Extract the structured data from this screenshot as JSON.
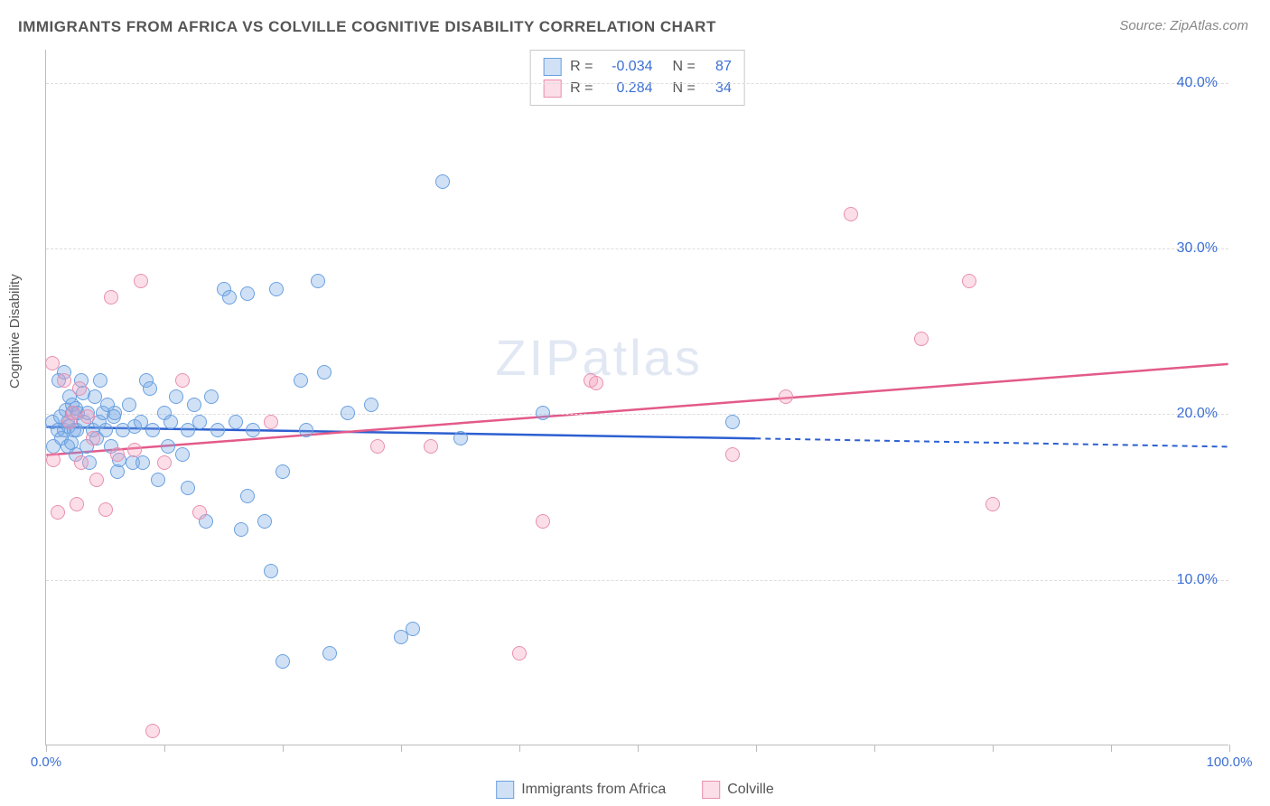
{
  "title": "IMMIGRANTS FROM AFRICA VS COLVILLE COGNITIVE DISABILITY CORRELATION CHART",
  "source_prefix": "Source: ",
  "source_name": "ZipAtlas.com",
  "watermark": "ZIPatlas",
  "ylabel": "Cognitive Disability",
  "chart": {
    "type": "scatter",
    "xlim": [
      0,
      100
    ],
    "ylim": [
      0,
      42
    ],
    "xticks": [
      0,
      10,
      20,
      30,
      40,
      50,
      60,
      70,
      80,
      90,
      100
    ],
    "xtick_labels": {
      "0": "0.0%",
      "100": "100.0%"
    },
    "yticks": [
      10,
      20,
      30,
      40
    ],
    "ytick_labels": [
      "10.0%",
      "20.0%",
      "30.0%",
      "40.0%"
    ],
    "grid_color": "#dddddd",
    "axis_color": "#bbbbbb",
    "tick_label_color": "#3b6fd4",
    "background_color": "#ffffff",
    "marker_radius": 8,
    "marker_stroke_width": 1.5,
    "trend_line_width": 2.5
  },
  "series": [
    {
      "name": "Immigrants from Africa",
      "fill": "rgba(120,170,230,0.35)",
      "stroke": "#6aa0e0",
      "trend_color": "#2d5fd0",
      "r_label": "R =",
      "r_value": "-0.034",
      "n_label": "N =",
      "n_value": "87",
      "trend": {
        "x1": 0,
        "y1": 19.2,
        "x2": 60,
        "y2": 18.5,
        "dash_to_x": 100,
        "dash_to_y": 18.0
      },
      "points": [
        [
          0.5,
          19.5
        ],
        [
          0.6,
          18.0
        ],
        [
          1.0,
          19.0
        ],
        [
          1.1,
          22.0
        ],
        [
          1.2,
          19.8
        ],
        [
          1.3,
          18.5
        ],
        [
          1.5,
          19.0
        ],
        [
          1.5,
          22.5
        ],
        [
          1.7,
          20.2
        ],
        [
          1.8,
          18.0
        ],
        [
          1.8,
          19.5
        ],
        [
          1.9,
          19.2
        ],
        [
          2.0,
          21.0
        ],
        [
          2.1,
          18.2
        ],
        [
          2.2,
          20.5
        ],
        [
          2.2,
          20.0
        ],
        [
          2.4,
          19.0
        ],
        [
          2.5,
          17.5
        ],
        [
          2.5,
          20.3
        ],
        [
          2.6,
          19.0
        ],
        [
          2.7,
          20.0
        ],
        [
          3.0,
          22.0
        ],
        [
          3.1,
          21.2
        ],
        [
          3.2,
          19.5
        ],
        [
          3.4,
          18.0
        ],
        [
          3.5,
          20.0
        ],
        [
          3.7,
          17.0
        ],
        [
          4.0,
          19.0
        ],
        [
          4.1,
          21.0
        ],
        [
          4.3,
          18.5
        ],
        [
          4.5,
          19.5
        ],
        [
          4.6,
          22.0
        ],
        [
          4.8,
          20.0
        ],
        [
          5.0,
          19.0
        ],
        [
          5.2,
          20.5
        ],
        [
          5.5,
          18.0
        ],
        [
          5.7,
          19.8
        ],
        [
          5.8,
          20.0
        ],
        [
          6.0,
          16.5
        ],
        [
          6.2,
          17.2
        ],
        [
          6.5,
          19.0
        ],
        [
          7.0,
          20.5
        ],
        [
          7.3,
          17.0
        ],
        [
          7.5,
          19.2
        ],
        [
          8.0,
          19.5
        ],
        [
          8.2,
          17.0
        ],
        [
          8.5,
          22.0
        ],
        [
          8.8,
          21.5
        ],
        [
          9.0,
          19.0
        ],
        [
          9.5,
          16.0
        ],
        [
          10.0,
          20.0
        ],
        [
          10.3,
          18.0
        ],
        [
          10.5,
          19.5
        ],
        [
          11.0,
          21.0
        ],
        [
          11.5,
          17.5
        ],
        [
          12.0,
          19.0
        ],
        [
          12.0,
          15.5
        ],
        [
          12.5,
          20.5
        ],
        [
          13.0,
          19.5
        ],
        [
          13.5,
          13.5
        ],
        [
          14.0,
          21.0
        ],
        [
          14.5,
          19.0
        ],
        [
          15.0,
          27.5
        ],
        [
          15.5,
          27.0
        ],
        [
          16.0,
          19.5
        ],
        [
          16.5,
          13.0
        ],
        [
          17.0,
          27.2
        ],
        [
          17.0,
          15.0
        ],
        [
          17.5,
          19.0
        ],
        [
          18.5,
          13.5
        ],
        [
          19.0,
          10.5
        ],
        [
          19.5,
          27.5
        ],
        [
          20.0,
          16.5
        ],
        [
          20.0,
          5.0
        ],
        [
          21.5,
          22.0
        ],
        [
          22.0,
          19.0
        ],
        [
          23.0,
          28.0
        ],
        [
          23.5,
          22.5
        ],
        [
          24.0,
          5.5
        ],
        [
          25.5,
          20.0
        ],
        [
          27.5,
          20.5
        ],
        [
          30.0,
          6.5
        ],
        [
          31.0,
          7.0
        ],
        [
          33.5,
          34.0
        ],
        [
          35.0,
          18.5
        ],
        [
          42.0,
          20.0
        ],
        [
          58.0,
          19.5
        ]
      ]
    },
    {
      "name": "Colville",
      "fill": "rgba(245,160,190,0.35)",
      "stroke": "#e890b0",
      "trend_color": "#e35a8a",
      "r_label": "R =",
      "r_value": "0.284",
      "n_label": "N =",
      "n_value": "34",
      "trend": {
        "x1": 0,
        "y1": 17.5,
        "x2": 100,
        "y2": 23.0
      },
      "points": [
        [
          0.5,
          23.0
        ],
        [
          0.6,
          17.2
        ],
        [
          1.0,
          14.0
        ],
        [
          1.5,
          22.0
        ],
        [
          2.0,
          19.5
        ],
        [
          2.3,
          20.0
        ],
        [
          2.6,
          14.5
        ],
        [
          2.8,
          21.5
        ],
        [
          3.0,
          17.0
        ],
        [
          3.5,
          19.8
        ],
        [
          4.0,
          18.5
        ],
        [
          4.3,
          16.0
        ],
        [
          5.0,
          14.2
        ],
        [
          5.5,
          27.0
        ],
        [
          6.0,
          17.5
        ],
        [
          7.5,
          17.8
        ],
        [
          8.0,
          28.0
        ],
        [
          9.0,
          0.8
        ],
        [
          10.0,
          17.0
        ],
        [
          11.5,
          22.0
        ],
        [
          13.0,
          14.0
        ],
        [
          19.0,
          19.5
        ],
        [
          28.0,
          18.0
        ],
        [
          32.5,
          18.0
        ],
        [
          40.0,
          5.5
        ],
        [
          42.0,
          13.5
        ],
        [
          46.0,
          22.0
        ],
        [
          46.5,
          21.8
        ],
        [
          58.0,
          17.5
        ],
        [
          62.5,
          21.0
        ],
        [
          68.0,
          32.0
        ],
        [
          74.0,
          24.5
        ],
        [
          78.0,
          28.0
        ],
        [
          80.0,
          14.5
        ]
      ]
    }
  ],
  "bottom_legend": [
    {
      "label": "Immigrants from Africa",
      "fill": "rgba(120,170,230,0.35)",
      "stroke": "#6aa0e0"
    },
    {
      "label": "Colville",
      "fill": "rgba(245,160,190,0.35)",
      "stroke": "#e890b0"
    }
  ]
}
